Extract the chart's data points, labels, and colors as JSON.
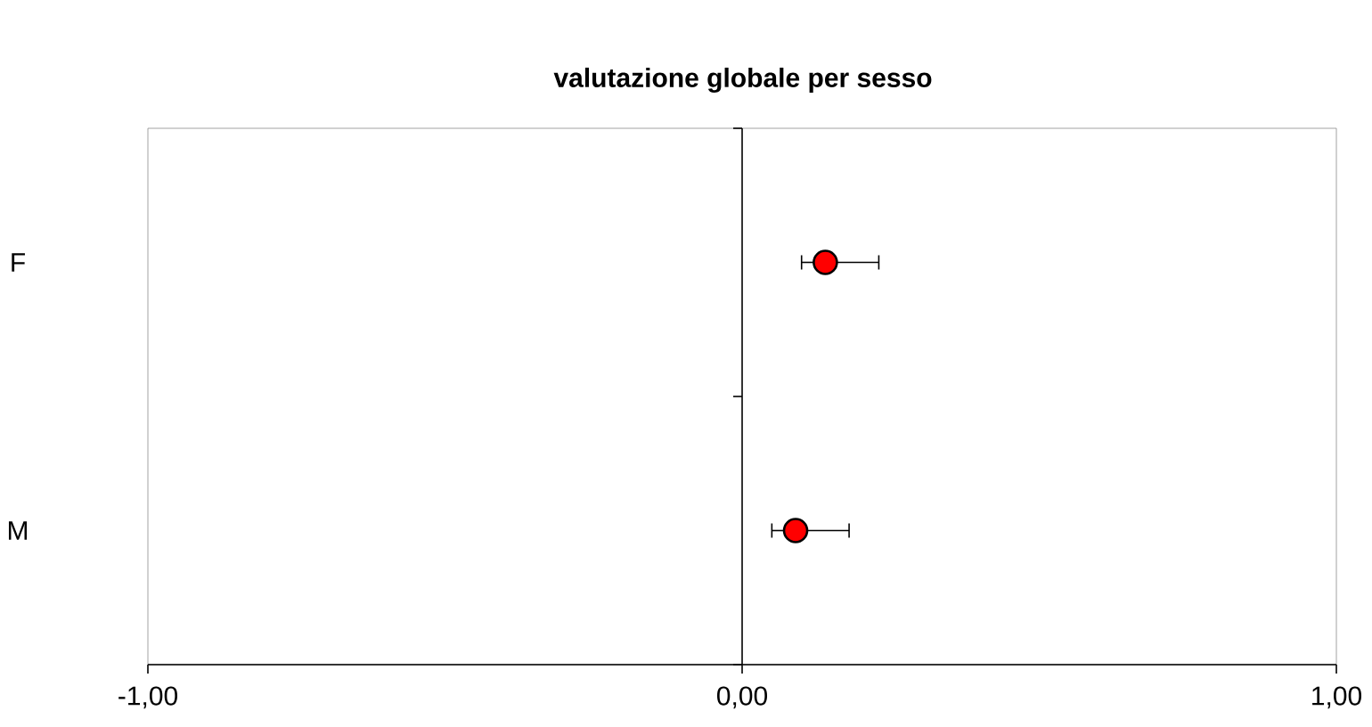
{
  "chart_data": {
    "type": "scatter",
    "title": "valutazione globale per sesso",
    "orientation": "horizontal",
    "categories": [
      "F",
      "M"
    ],
    "values": [
      0.14,
      0.09
    ],
    "errors": [
      [
        0.1,
        0.23
      ],
      [
        0.05,
        0.18
      ]
    ],
    "color": "#ff0000",
    "marker": "circle",
    "xlim": [
      -1,
      1
    ],
    "xticks": [
      {
        "value": -1,
        "label": "-1,00"
      },
      {
        "value": 0,
        "label": "0,00"
      },
      {
        "value": 1,
        "label": "1,00"
      }
    ]
  }
}
